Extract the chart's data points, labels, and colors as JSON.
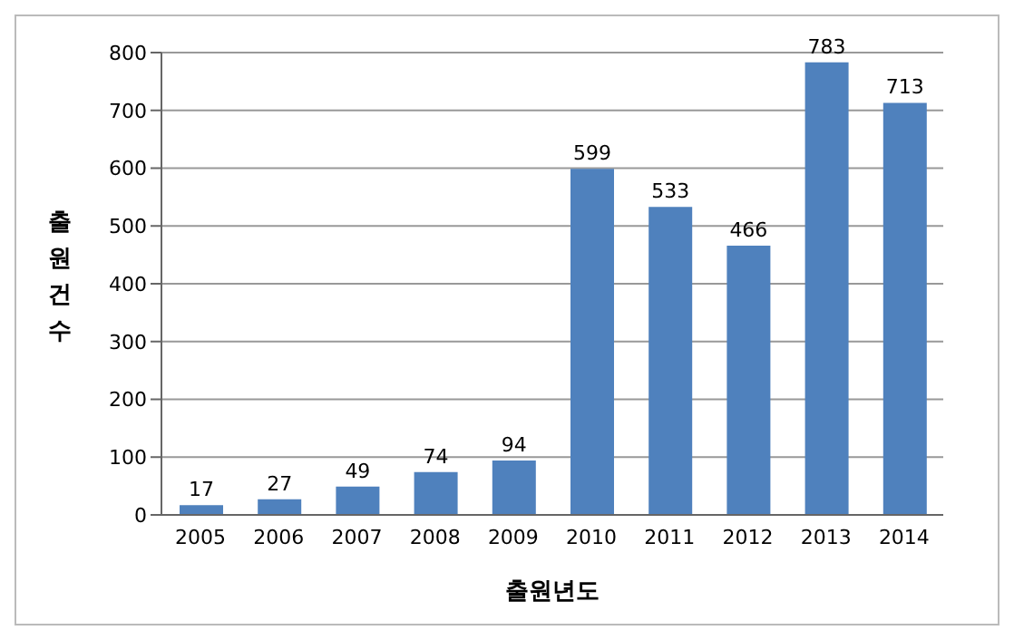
{
  "chart_data": {
    "type": "bar",
    "xlabel": "출원년도",
    "ylabel": "출원건수",
    "categories": [
      "2005",
      "2006",
      "2007",
      "2008",
      "2009",
      "2010",
      "2011",
      "2012",
      "2013",
      "2014"
    ],
    "values": [
      17,
      27,
      49,
      74,
      94,
      599,
      533,
      466,
      783,
      713
    ],
    "color": "#4f81bd",
    "ylim": [
      0,
      800
    ],
    "yticks": [
      0,
      100,
      200,
      300,
      400,
      500,
      600,
      700,
      800
    ],
    "grid": "y",
    "data_labels": true
  }
}
